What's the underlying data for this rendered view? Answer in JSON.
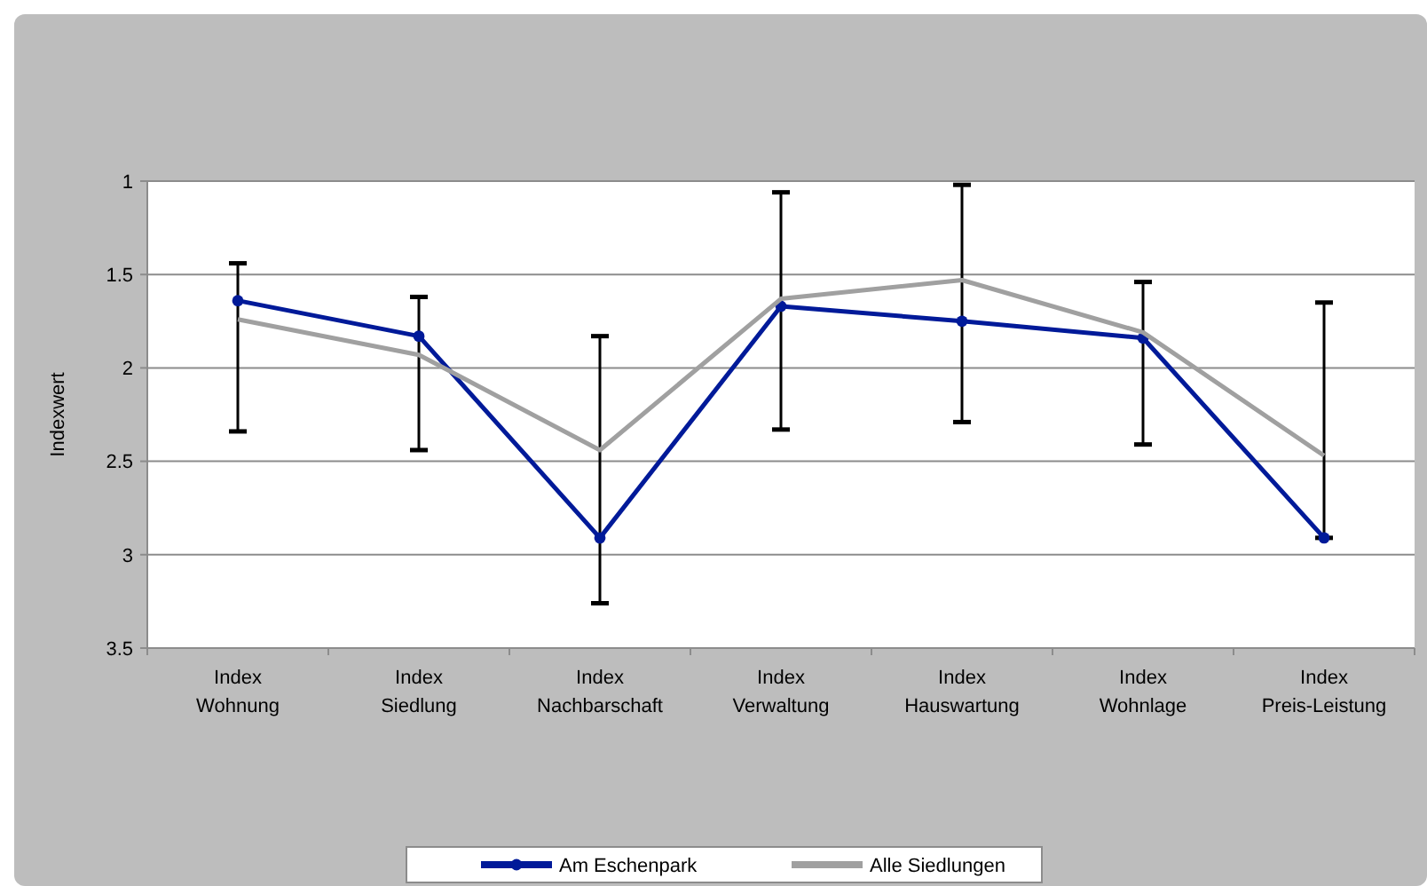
{
  "chart_data": {
    "type": "line",
    "ylabel": "Indexwert",
    "categories": [
      "Index Wohnung",
      "Index Siedlung",
      "Index Nachbarschaft",
      "Index Verwaltung",
      "Index Hauswartung",
      "Index Wohnlage",
      "Index Preis-Leistung"
    ],
    "series": [
      {
        "name": "Am Eschenpark",
        "color": "#001a99",
        "values": [
          1.64,
          1.83,
          2.91,
          1.67,
          1.75,
          1.84,
          2.91
        ],
        "errors": [
          [
            1.44,
            2.34
          ],
          [
            1.62,
            2.44
          ],
          [
            1.83,
            3.26
          ],
          [
            1.06,
            2.33
          ],
          [
            1.02,
            2.29
          ],
          [
            1.54,
            2.41
          ],
          [
            1.65,
            2.91
          ]
        ],
        "marker": "circle"
      },
      {
        "name": "Alle Siedlungen",
        "color": "#a0a0a0",
        "values": [
          1.74,
          1.93,
          2.44,
          1.63,
          1.53,
          1.81,
          2.47
        ],
        "marker": "none"
      }
    ],
    "ylim": [
      3.5,
      1
    ],
    "yticks": [
      1,
      1.5,
      2,
      2.5,
      3,
      3.5
    ],
    "grid": "y",
    "legend": "bottom",
    "line_style": "solid"
  }
}
